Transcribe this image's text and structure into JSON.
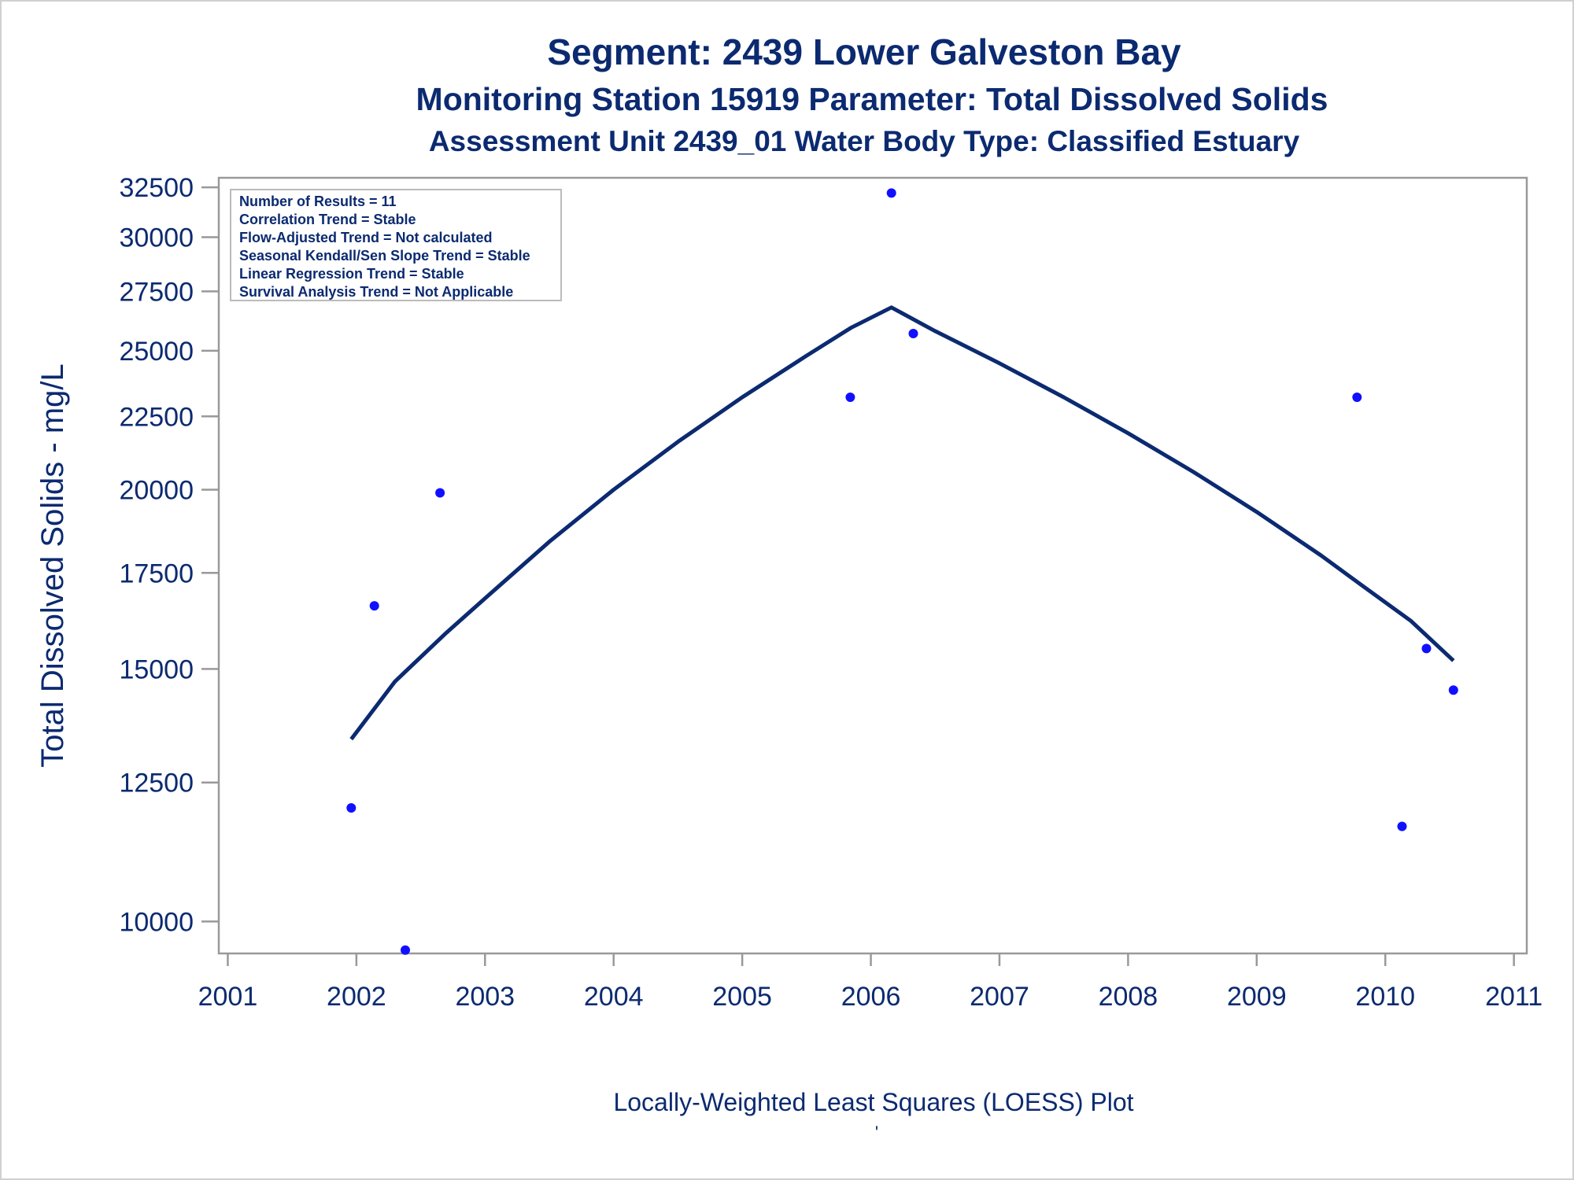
{
  "titles": {
    "line1": "Segment: 2439  Lower Galveston Bay",
    "line2": "Monitoring Station 15919 Parameter: Total Dissolved Solids",
    "line3": "Assessment Unit 2439_01   Water Body Type: Classified Estuary"
  },
  "stats_box": [
    "Number of Results = 11",
    "Correlation Trend = Stable",
    "Flow-Adjusted Trend = Not calculated",
    "Seasonal Kendall/Sen Slope Trend = Stable",
    "Linear Regression Trend = Stable",
    "Survival Analysis Trend = Not Applicable"
  ],
  "footer": {
    "plot_label": "Locally-Weighted Least Squares (LOESS) Plot",
    "tick_mark": "'"
  },
  "colors": {
    "text": "#0b2a70",
    "points": "#1010ff",
    "loess": "#0b2a70",
    "axis": "#999999"
  },
  "chart_data": {
    "type": "scatter",
    "xlabel": "",
    "ylabel": "Total Dissolved Solids - mg/L",
    "y_scale": "log",
    "xlim": [
      2000.93,
      2011.1
    ],
    "ylim": [
      9500,
      33000
    ],
    "x_ticks": [
      2001,
      2002,
      2003,
      2004,
      2005,
      2006,
      2007,
      2008,
      2009,
      2010,
      2011
    ],
    "y_ticks": [
      10000,
      12500,
      15000,
      17500,
      20000,
      22500,
      25000,
      27500,
      30000,
      32500
    ],
    "grid": false,
    "legend": "none",
    "series": [
      {
        "marker": "dot",
        "x": [
          2001.96,
          2002.14,
          2002.38,
          2002.65,
          2005.84,
          2006.16,
          2006.33,
          2009.78,
          2010.13,
          2010.32,
          2010.53
        ],
        "y": [
          12000,
          16600,
          9550,
          19900,
          23200,
          32200,
          25700,
          23200,
          11650,
          15500,
          14500
        ]
      },
      {
        "marker": "line",
        "x": [
          2001.96,
          2002.3,
          2002.7,
          2003.0,
          2003.5,
          2004.0,
          2004.5,
          2005.0,
          2005.5,
          2005.85,
          2006.16,
          2006.5,
          2007.0,
          2007.5,
          2008.0,
          2008.5,
          2009.0,
          2009.5,
          2009.8,
          2010.2,
          2010.53
        ],
        "y": [
          13400,
          14700,
          15900,
          16800,
          18400,
          20000,
          21600,
          23200,
          24800,
          25950,
          26800,
          25800,
          24500,
          23200,
          21900,
          20600,
          19300,
          18000,
          17200,
          16200,
          15200
        ]
      }
    ]
  }
}
